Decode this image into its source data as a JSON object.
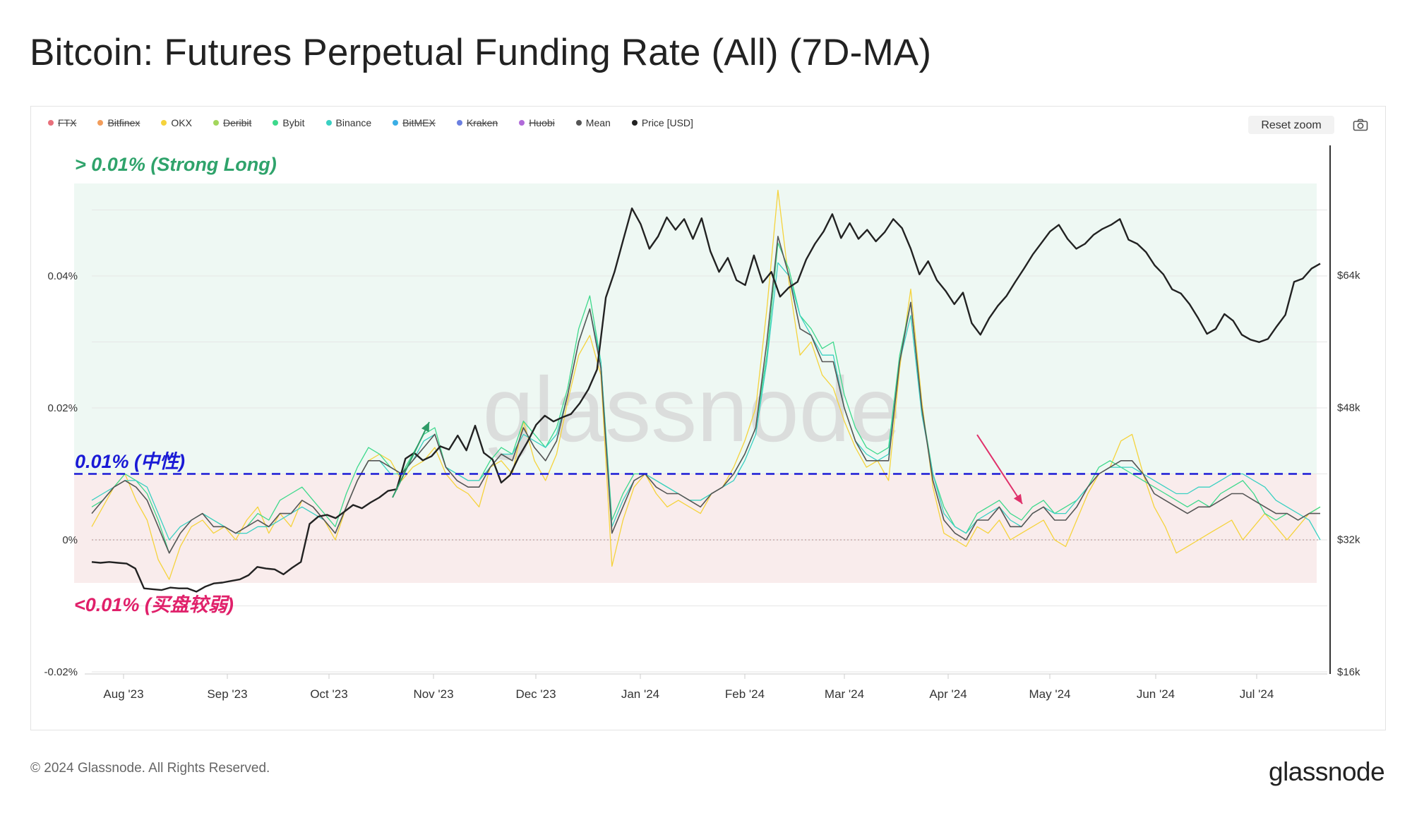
{
  "title": "Bitcoin: Futures Perpetual Funding Rate (All) (7D-MA)",
  "legend": [
    {
      "label": "FTX",
      "color": "#e8707b",
      "enabled": false
    },
    {
      "label": "Bitfinex",
      "color": "#f29d5b",
      "enabled": false
    },
    {
      "label": "OKX",
      "color": "#f5d33c",
      "enabled": true
    },
    {
      "label": "Deribit",
      "color": "#a3d65c",
      "enabled": false
    },
    {
      "label": "Bybit",
      "color": "#3dd98c",
      "enabled": true
    },
    {
      "label": "Binance",
      "color": "#3ad0c2",
      "enabled": true
    },
    {
      "label": "BitMEX",
      "color": "#3aaee5",
      "enabled": false
    },
    {
      "label": "Kraken",
      "color": "#6b7fe0",
      "enabled": false
    },
    {
      "label": "Huobi",
      "color": "#b06ad9",
      "enabled": false
    },
    {
      "label": "Mean",
      "color": "#555555",
      "enabled": true
    },
    {
      "label": "Price [USD]",
      "color": "#222222",
      "enabled": true
    }
  ],
  "toolbar": {
    "reset_zoom": "Reset zoom",
    "camera_icon": "camera-icon"
  },
  "annotations": {
    "strong_long": "> 0.01% (Strong Long)",
    "neutral": "0.01% (中性)",
    "weak_buy": "<0.01% (买盘较弱)"
  },
  "watermark": "glassnode",
  "footer": {
    "copyright": "© 2024 Glassnode. All Rights Reserved.",
    "brand": "glassnode"
  },
  "colors": {
    "strong_zone": "#eef8f3",
    "weak_zone": "#f9ecec",
    "neutral_line": "#1a1ad6",
    "strong_text": "#2fa36b",
    "neutral_text": "#1a1ad6",
    "weak_text": "#e0206a",
    "arrow_up": "#2e9b67",
    "arrow_down": "#e0306a"
  },
  "chart_data": {
    "type": "line",
    "x_ticks": [
      "Aug '23",
      "Sep '23",
      "Oct '23",
      "Nov '23",
      "Dec '23",
      "Jan '24",
      "Feb '24",
      "Mar '24",
      "Apr '24",
      "May '24",
      "Jun '24",
      "Jul '24"
    ],
    "left_axis": {
      "ticks": [
        "0.04%",
        "0.02%",
        "0%",
        "-0.02%"
      ],
      "values": [
        0.04,
        0.02,
        0,
        -0.02
      ],
      "range": [
        -0.02,
        0.05
      ]
    },
    "right_axis": {
      "ticks": [
        "$64k",
        "$48k",
        "$32k",
        "$16k"
      ],
      "values": [
        64000,
        48000,
        32000,
        16000
      ],
      "range": [
        16000,
        80000
      ]
    },
    "zones": {
      "strong_long_above": 0.01,
      "weak_below": 0.01,
      "neutral": 0.01
    },
    "x_range": [
      0,
      52
    ],
    "series": [
      {
        "name": "Price [USD]",
        "axis": "right",
        "color": "#222222",
        "width": 2.4,
        "values": [
          29300,
          29200,
          29300,
          29200,
          29100,
          28500,
          26100,
          26000,
          25900,
          26200,
          26100,
          26100,
          25700,
          26300,
          26700,
          26800,
          27000,
          27200,
          27700,
          28700,
          28500,
          28400,
          27800,
          28600,
          29300,
          33900,
          34800,
          35000,
          34600,
          35400,
          36200,
          35800,
          36500,
          37100,
          37900,
          38100,
          41800,
          42500,
          41600,
          42100,
          43300,
          42900,
          44600,
          42800,
          45800,
          42500,
          41700,
          38900,
          39800,
          42000,
          43800,
          45900,
          47000,
          46300,
          46800,
          47200,
          48500,
          50200,
          52600,
          61300,
          64400,
          68300,
          72100,
          70200,
          67200,
          68700,
          71000,
          69500,
          70800,
          68400,
          70900,
          66900,
          64400,
          66100,
          63400,
          62800,
          66400,
          63100,
          64400,
          61400,
          62500,
          63200,
          65900,
          67800,
          69300,
          71400,
          68500,
          70300,
          68400,
          69500,
          68100,
          69200,
          70800,
          69700,
          67200,
          64100,
          65700,
          63400,
          62100,
          60500,
          61900,
          58200,
          56800,
          58800,
          60300,
          61500,
          63200,
          64800,
          66500,
          67900,
          69300,
          70100,
          68400,
          67200,
          67800,
          68900,
          69600,
          70100,
          70800,
          68300,
          67800,
          66800,
          65200,
          64100,
          62300,
          61800,
          60500,
          58800,
          56900,
          57500,
          59300,
          58500,
          56800,
          56200,
          55900,
          56300,
          57800,
          59200,
          63200,
          63600,
          64800,
          65400
        ]
      },
      {
        "name": "OKX",
        "axis": "left",
        "color": "#f5d33c",
        "width": 1.3,
        "values": [
          0.002,
          0.005,
          0.008,
          0.01,
          0.006,
          0.003,
          -0.003,
          -0.006,
          -0.001,
          0.002,
          0.003,
          0.001,
          0.002,
          0.0,
          0.003,
          0.005,
          0.001,
          0.004,
          0.002,
          0.006,
          0.005,
          0.003,
          0.0,
          0.005,
          0.009,
          0.012,
          0.013,
          0.012,
          0.009,
          0.011,
          0.012,
          0.014,
          0.01,
          0.008,
          0.007,
          0.005,
          0.011,
          0.012,
          0.01,
          0.018,
          0.012,
          0.009,
          0.013,
          0.021,
          0.028,
          0.031,
          0.025,
          -0.004,
          0.003,
          0.008,
          0.01,
          0.007,
          0.005,
          0.006,
          0.005,
          0.004,
          0.007,
          0.008,
          0.011,
          0.015,
          0.02,
          0.035,
          0.053,
          0.039,
          0.028,
          0.03,
          0.025,
          0.023,
          0.018,
          0.014,
          0.011,
          0.012,
          0.009,
          0.026,
          0.038,
          0.021,
          0.008,
          0.001,
          0.0,
          -0.001,
          0.002,
          0.001,
          0.003,
          0.0,
          0.001,
          0.002,
          0.003,
          0.0,
          -0.001,
          0.003,
          0.007,
          0.01,
          0.011,
          0.015,
          0.016,
          0.01,
          0.005,
          0.002,
          -0.002,
          -0.001,
          0.0,
          0.001,
          0.002,
          0.003,
          0.0,
          0.002,
          0.004,
          0.002,
          0.0,
          0.002,
          0.004,
          0.005
        ]
      },
      {
        "name": "Bybit",
        "axis": "left",
        "color": "#3dd98c",
        "width": 1.3,
        "values": [
          0.005,
          0.006,
          0.008,
          0.01,
          0.009,
          0.007,
          0.003,
          -0.002,
          0.001,
          0.003,
          0.004,
          0.003,
          0.002,
          0.001,
          0.002,
          0.004,
          0.003,
          0.006,
          0.007,
          0.008,
          0.006,
          0.004,
          0.002,
          0.007,
          0.011,
          0.014,
          0.013,
          0.011,
          0.01,
          0.013,
          0.016,
          0.017,
          0.011,
          0.01,
          0.009,
          0.009,
          0.012,
          0.014,
          0.013,
          0.018,
          0.016,
          0.014,
          0.017,
          0.023,
          0.032,
          0.037,
          0.027,
          0.003,
          0.007,
          0.01,
          0.01,
          0.009,
          0.008,
          0.007,
          0.006,
          0.006,
          0.007,
          0.008,
          0.01,
          0.013,
          0.017,
          0.028,
          0.045,
          0.041,
          0.034,
          0.032,
          0.029,
          0.03,
          0.022,
          0.017,
          0.014,
          0.013,
          0.014,
          0.028,
          0.036,
          0.02,
          0.01,
          0.005,
          0.002,
          0.001,
          0.004,
          0.005,
          0.006,
          0.004,
          0.003,
          0.005,
          0.006,
          0.004,
          0.005,
          0.006,
          0.008,
          0.011,
          0.012,
          0.011,
          0.01,
          0.009,
          0.008,
          0.007,
          0.006,
          0.005,
          0.006,
          0.005,
          0.007,
          0.008,
          0.009,
          0.007,
          0.004,
          0.003,
          0.004,
          0.003,
          0.004,
          0.005
        ]
      },
      {
        "name": "Binance",
        "axis": "left",
        "color": "#3ad0c2",
        "width": 1.3,
        "values": [
          0.006,
          0.007,
          0.008,
          0.009,
          0.009,
          0.008,
          0.004,
          0.0,
          0.002,
          0.003,
          0.004,
          0.003,
          0.002,
          0.001,
          0.001,
          0.002,
          0.002,
          0.003,
          0.004,
          0.005,
          0.004,
          0.003,
          0.001,
          0.005,
          0.009,
          0.012,
          0.012,
          0.01,
          0.01,
          0.012,
          0.015,
          0.016,
          0.011,
          0.01,
          0.009,
          0.009,
          0.011,
          0.013,
          0.013,
          0.016,
          0.015,
          0.014,
          0.016,
          0.022,
          0.03,
          0.035,
          0.027,
          0.002,
          0.006,
          0.009,
          0.01,
          0.009,
          0.008,
          0.007,
          0.006,
          0.006,
          0.007,
          0.008,
          0.009,
          0.012,
          0.016,
          0.027,
          0.042,
          0.04,
          0.034,
          0.031,
          0.028,
          0.028,
          0.02,
          0.015,
          0.013,
          0.012,
          0.013,
          0.027,
          0.034,
          0.019,
          0.01,
          0.004,
          0.002,
          0.001,
          0.003,
          0.004,
          0.005,
          0.003,
          0.002,
          0.004,
          0.005,
          0.004,
          0.004,
          0.006,
          0.008,
          0.01,
          0.011,
          0.011,
          0.011,
          0.01,
          0.009,
          0.008,
          0.007,
          0.007,
          0.008,
          0.008,
          0.009,
          0.01,
          0.01,
          0.009,
          0.008,
          0.006,
          0.005,
          0.004,
          0.003,
          0.0
        ]
      },
      {
        "name": "Mean",
        "axis": "left",
        "color": "#555555",
        "width": 1.6,
        "values": [
          0.004,
          0.006,
          0.008,
          0.009,
          0.008,
          0.006,
          0.002,
          -0.002,
          0.001,
          0.003,
          0.004,
          0.002,
          0.002,
          0.001,
          0.002,
          0.003,
          0.002,
          0.004,
          0.004,
          0.006,
          0.005,
          0.003,
          0.001,
          0.005,
          0.009,
          0.012,
          0.012,
          0.011,
          0.01,
          0.012,
          0.014,
          0.016,
          0.011,
          0.009,
          0.008,
          0.008,
          0.011,
          0.013,
          0.012,
          0.017,
          0.014,
          0.012,
          0.015,
          0.022,
          0.03,
          0.035,
          0.026,
          0.001,
          0.005,
          0.009,
          0.01,
          0.008,
          0.007,
          0.007,
          0.006,
          0.005,
          0.007,
          0.008,
          0.01,
          0.013,
          0.017,
          0.03,
          0.046,
          0.04,
          0.032,
          0.031,
          0.027,
          0.027,
          0.02,
          0.015,
          0.012,
          0.012,
          0.012,
          0.027,
          0.036,
          0.02,
          0.009,
          0.003,
          0.001,
          0.0,
          0.003,
          0.003,
          0.005,
          0.002,
          0.002,
          0.004,
          0.005,
          0.003,
          0.003,
          0.005,
          0.008,
          0.01,
          0.011,
          0.012,
          0.012,
          0.01,
          0.007,
          0.006,
          0.005,
          0.004,
          0.005,
          0.005,
          0.006,
          0.007,
          0.007,
          0.006,
          0.005,
          0.004,
          0.004,
          0.003,
          0.004,
          0.004
        ]
      }
    ]
  }
}
